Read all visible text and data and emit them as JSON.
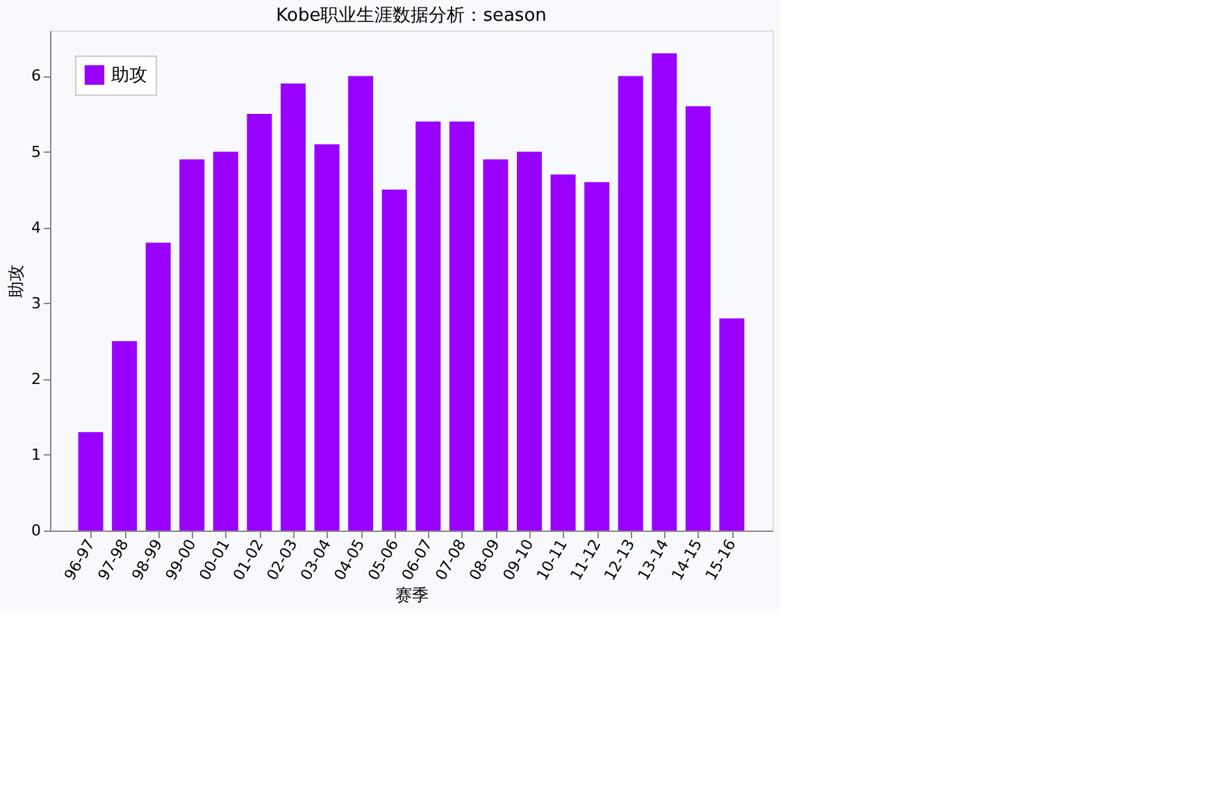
{
  "chart_data": {
    "type": "bar",
    "title": "Kobe职业生涯数据分析：season",
    "xlabel": "赛季",
    "ylabel": "助攻",
    "categories": [
      "96-97",
      "97-98",
      "98-99",
      "99-00",
      "00-01",
      "01-02",
      "02-03",
      "03-04",
      "04-05",
      "05-06",
      "06-07",
      "07-08",
      "08-09",
      "09-10",
      "10-11",
      "11-12",
      "12-13",
      "13-14",
      "14-15",
      "15-16"
    ],
    "series": [
      {
        "name": "助攻",
        "color": "#9900ff",
        "values": [
          1.3,
          2.5,
          3.8,
          4.9,
          5.0,
          5.5,
          5.9,
          5.1,
          6.0,
          4.5,
          5.4,
          5.4,
          4.9,
          5.0,
          4.7,
          4.6,
          6.0,
          6.3,
          5.6,
          2.8
        ]
      }
    ],
    "ylim": [
      0,
      6.6
    ],
    "yticks": [
      0,
      1,
      2,
      3,
      4,
      5,
      6
    ],
    "grid": false,
    "legend": "top left"
  }
}
